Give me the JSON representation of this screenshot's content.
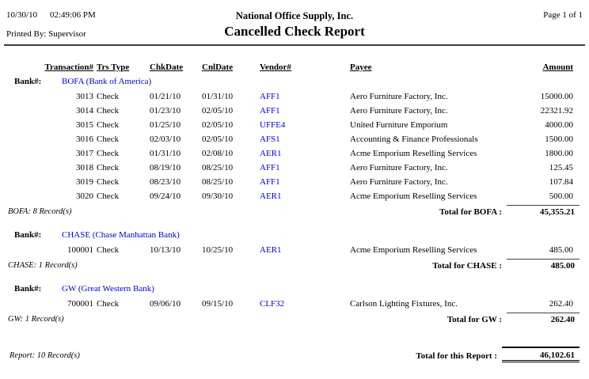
{
  "header": {
    "print_date": "10/30/10",
    "print_time": "02:49:06 PM",
    "printed_by": "Printed By: Supervisor",
    "company": "National Office Supply, Inc.",
    "report_title": "Cancelled Check Report",
    "page_indicator": "Page 1 of 1"
  },
  "table": {
    "bank_label": "Bank#:",
    "columns": [
      "Transaction#",
      "Trs Type",
      "ChkDate",
      "CnlDate",
      "Vendor#",
      "Payee",
      "Amount"
    ],
    "groups": [
      {
        "bank": "BOFA (Bank of America)",
        "rows": [
          [
            "3013",
            "Check",
            "01/21/10",
            "01/31/10",
            "AFF1",
            "Aero Furniture Factory, Inc.",
            "15000.00"
          ],
          [
            "3014",
            "Check",
            "01/23/10",
            "02/05/10",
            "AFF1",
            "Aero Furniture Factory, Inc.",
            "22321.92"
          ],
          [
            "3015",
            "Check",
            "01/25/10",
            "02/05/10",
            "UFFE4",
            "United Furniture Emporium",
            "4000.00"
          ],
          [
            "3016",
            "Check",
            "02/03/10",
            "02/05/10",
            "AFS1",
            "Accounting & Finance Professionals",
            "1500.00"
          ],
          [
            "3017",
            "Check",
            "01/31/10",
            "02/08/10",
            "AER1",
            "Acme Emporium Reselling Services",
            "1800.00"
          ],
          [
            "3018",
            "Check",
            "08/19/10",
            "08/25/10",
            "AFF1",
            "Aero Furniture Factory, Inc.",
            "125.45"
          ],
          [
            "3019",
            "Check",
            "08/23/10",
            "08/25/10",
            "AFF1",
            "Aero Furniture Factory, Inc.",
            "107.84"
          ],
          [
            "3020",
            "Check",
            "09/24/10",
            "09/30/10",
            "AER1",
            "Acme Emporium Reselling Services",
            "500.00"
          ]
        ],
        "record_count": "BOFA: 8 Record(s)",
        "total_label": "Total for BOFA :",
        "total_amount": "45,355.21"
      },
      {
        "bank": "CHASE (Chase Manhattan Bank)",
        "rows": [
          [
            "100001",
            "Check",
            "10/13/10",
            "10/25/10",
            "AER1",
            "Acme Emporium Reselling Services",
            "485.00"
          ]
        ],
        "record_count": "CHASE: 1 Record(s)",
        "total_label": "Total for CHASE :",
        "total_amount": "485.00"
      },
      {
        "bank": "GW (Great Western Bank)",
        "rows": [
          [
            "700001",
            "Check",
            "09/06/10",
            "09/15/10",
            "CLF32",
            "Carlson Lighting Fixtures, Inc.",
            "262.40"
          ]
        ],
        "record_count": "GW: 1 Record(s)",
        "total_label": "Total for GW :",
        "total_amount": "262.40"
      }
    ],
    "report_footer": {
      "record_count": "Report: 10 Record(s)",
      "total_label": "Total for this Report :",
      "total_amount": "46,102.61"
    }
  },
  "colors": {
    "link_blue": "#0000CC",
    "text": "#000000",
    "divider": "#3c3c3c"
  }
}
